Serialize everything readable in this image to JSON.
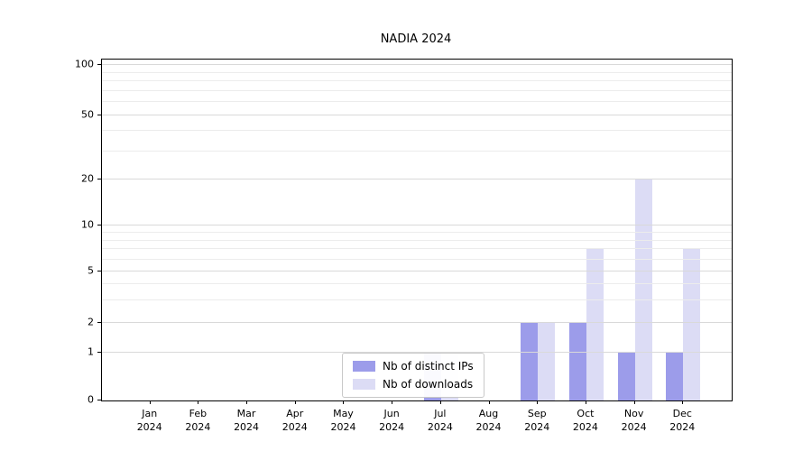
{
  "title": "NADIA 2024",
  "chart_data": {
    "type": "bar",
    "title": "NADIA 2024",
    "categories": [
      "Jan 2024",
      "Feb 2024",
      "Mar 2024",
      "Apr 2024",
      "May 2024",
      "Jun 2024",
      "Jul 2024",
      "Aug 2024",
      "Sep 2024",
      "Oct 2024",
      "Nov 2024",
      "Dec 2024"
    ],
    "series": [
      {
        "name": "Nb of distinct IPs",
        "color": "#9c9cea",
        "values": [
          0,
          0,
          0,
          0,
          0,
          0,
          1,
          0,
          2,
          2,
          1,
          1
        ]
      },
      {
        "name": "Nb of downloads",
        "color": "#dcdcf5",
        "values": [
          0,
          0,
          0,
          0,
          0,
          0,
          1,
          0,
          2,
          7,
          20,
          7
        ]
      }
    ],
    "y_axis": {
      "scale": "symlog",
      "ticks": [
        0,
        1,
        2,
        5,
        10,
        20,
        50,
        100
      ],
      "minor_ticks": [
        3,
        4,
        6,
        7,
        8,
        9,
        30,
        40,
        60,
        70,
        80,
        90
      ],
      "range": [
        0,
        100
      ]
    },
    "x_axis": {
      "year_line": "2024"
    },
    "grid": true,
    "legend_position": "lower-center-inside"
  }
}
